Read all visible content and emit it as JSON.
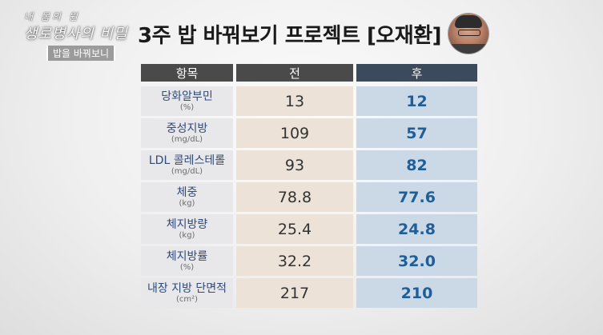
{
  "logo": {
    "line1": "내 몸의 원",
    "line2": "생로병사의 비밀",
    "line3": "밥을 바꿔보니"
  },
  "title": "3주 밥 바꿔보기 프로젝트 [오재환]",
  "table": {
    "headers": {
      "item": "항목",
      "before": "전",
      "after": "후"
    },
    "rows": [
      {
        "name": "당화알부민",
        "unit": "(%)",
        "before": "13",
        "after": "12"
      },
      {
        "name": "중성지방",
        "unit": "(mg/dL)",
        "before": "109",
        "after": "57"
      },
      {
        "name": "LDL 콜레스테롤",
        "unit": "(mg/dL)",
        "before": "93",
        "after": "82"
      },
      {
        "name": "체중",
        "unit": "(kg)",
        "before": "78.8",
        "after": "77.6"
      },
      {
        "name": "체지방량",
        "unit": "(kg)",
        "before": "25.4",
        "after": "24.8"
      },
      {
        "name": "체지방률",
        "unit": "(%)",
        "before": "32.2",
        "after": "32.0"
      },
      {
        "name": "내장 지방 단면적",
        "unit": "(cm²)",
        "before": "217",
        "after": "210"
      }
    ]
  },
  "colors": {
    "header_dark": "#4a4a4a",
    "header_after": "#3b4a5c",
    "before_bg": "#ece2d7",
    "after_bg": "#cbd8e6",
    "after_text": "#1f5f99",
    "item_text": "#2f4a78"
  }
}
